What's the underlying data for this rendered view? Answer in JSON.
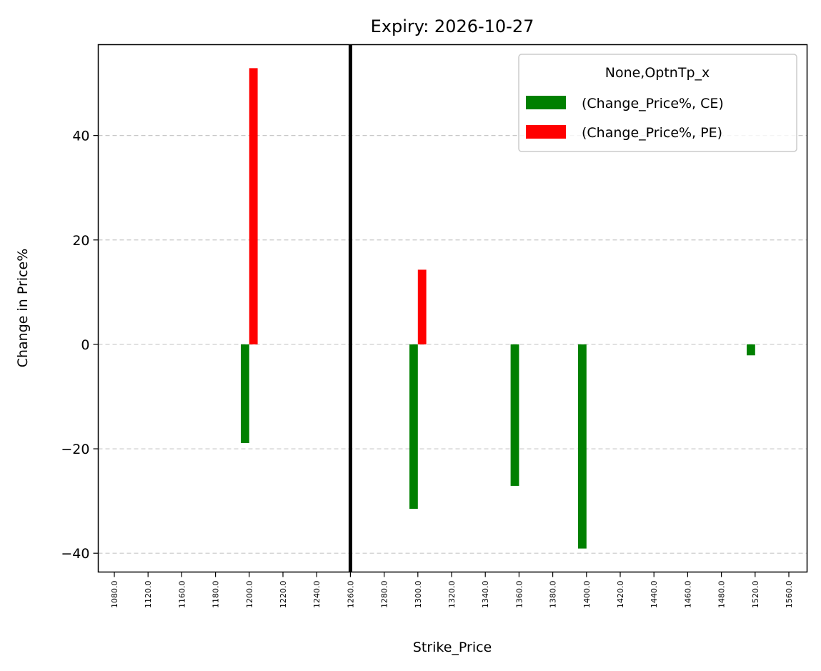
{
  "chart_data": {
    "type": "bar",
    "title": "Expiry: 2026-10-27",
    "xlabel": "Strike_Price",
    "ylabel": "Change in Price%",
    "categories": [
      "1080.0",
      "1120.0",
      "1160.0",
      "1180.0",
      "1200.0",
      "1220.0",
      "1240.0",
      "1260.0",
      "1280.0",
      "1300.0",
      "1320.0",
      "1340.0",
      "1360.0",
      "1380.0",
      "1400.0",
      "1420.0",
      "1440.0",
      "1460.0",
      "1480.0",
      "1520.0",
      "1560.0"
    ],
    "series": [
      {
        "name": "(Change_Price%, CE)",
        "color": "#008000",
        "values": [
          null,
          null,
          null,
          null,
          -18.9,
          null,
          null,
          null,
          null,
          -31.5,
          null,
          null,
          -27.1,
          null,
          -39.1,
          null,
          null,
          null,
          null,
          -2.1,
          null
        ]
      },
      {
        "name": "(Change_Price%, PE)",
        "color": "#ff0000",
        "values": [
          null,
          null,
          null,
          null,
          52.9,
          null,
          null,
          null,
          null,
          14.3,
          null,
          null,
          null,
          null,
          null,
          null,
          null,
          null,
          null,
          null,
          null
        ]
      }
    ],
    "ylim": [
      -43.6,
      57.4
    ],
    "yticks": [
      -40,
      -20,
      0,
      20,
      40
    ],
    "ytick_labels": [
      "−40",
      "−20",
      "0",
      "20",
      "40"
    ],
    "grid": "y, dashed",
    "reference_line": {
      "category": "1260.0",
      "color": "#000000"
    },
    "legend": {
      "title": "None,OptnTp_x",
      "placement": "top-right"
    }
  }
}
